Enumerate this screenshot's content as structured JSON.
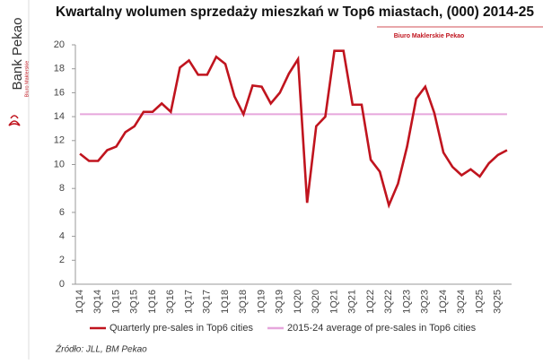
{
  "chart_data": {
    "type": "line",
    "title": "Kwartalny wolumen sprzedaży mieszkań w Top6 miastach, (000) 2014-25",
    "categories": [
      "1Q14",
      null,
      "3Q14",
      null,
      "1Q15",
      null,
      "3Q15",
      null,
      "1Q16",
      null,
      "3Q16",
      null,
      "1Q17",
      null,
      "3Q17",
      null,
      "1Q18",
      null,
      "3Q18",
      null,
      "1Q19",
      null,
      "3Q19",
      null,
      "1Q20",
      null,
      "3Q20",
      null,
      "1Q21",
      null,
      "3Q21",
      null,
      "1Q22",
      null,
      "3Q22",
      null,
      "1Q23",
      null,
      "3Q23",
      null,
      "1Q24",
      null,
      "3Q24",
      null,
      "1Q25",
      null,
      "3Q25",
      null
    ],
    "series": [
      {
        "name": "Quarterly pre-sales in Top6 cities",
        "color": "#c0141e",
        "values": [
          10.9,
          10.3,
          10.3,
          11.2,
          11.5,
          12.7,
          13.2,
          14.4,
          14.4,
          15.1,
          14.4,
          18.1,
          18.7,
          17.5,
          17.5,
          19.0,
          18.4,
          15.7,
          14.2,
          16.6,
          16.5,
          15.1,
          16.0,
          17.6,
          18.8,
          6.8,
          13.2,
          14.0,
          19.5,
          19.5,
          15.0,
          15.0,
          10.4,
          9.4,
          6.6,
          8.4,
          11.5,
          15.5,
          16.5,
          14.3,
          11.0,
          9.8,
          9.1,
          9.6,
          9.0,
          10.1,
          10.8,
          11.2
        ]
      },
      {
        "name": "2015-24 average of pre-sales in Top6 cities",
        "color": "#e6a6dc",
        "values": [
          14.2,
          14.2,
          14.2,
          14.2,
          14.2,
          14.2,
          14.2,
          14.2,
          14.2,
          14.2,
          14.2,
          14.2,
          14.2,
          14.2,
          14.2,
          14.2,
          14.2,
          14.2,
          14.2,
          14.2,
          14.2,
          14.2,
          14.2,
          14.2,
          14.2,
          14.2,
          14.2,
          14.2,
          14.2,
          14.2,
          14.2,
          14.2,
          14.2,
          14.2,
          14.2,
          14.2,
          14.2,
          14.2,
          14.2,
          14.2,
          14.2,
          14.2,
          14.2,
          14.2,
          14.2,
          14.2,
          14.2,
          14.2
        ]
      }
    ],
    "ylim": [
      0,
      20
    ],
    "yticks": [
      0,
      2,
      4,
      6,
      8,
      10,
      12,
      14,
      16,
      18,
      20
    ],
    "grid": false,
    "source": "Źródło: JLL, BM Pekao"
  },
  "logo": {
    "name": "Bank Pekao",
    "sub": "Biuro Maklerskie"
  },
  "banner": "Biuro Maklerskie Pekao"
}
